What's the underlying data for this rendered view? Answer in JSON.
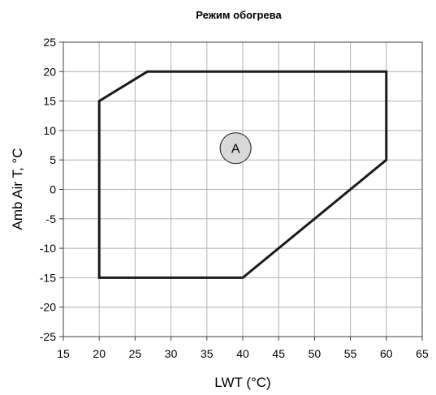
{
  "chart_data": {
    "type": "area",
    "title": "Режим обогрева",
    "xlabel": "LWT (°C)",
    "ylabel": "Amb Air T, °C",
    "xlim": [
      15,
      65
    ],
    "ylim": [
      -25,
      25
    ],
    "xticks": [
      15,
      20,
      25,
      30,
      35,
      40,
      45,
      50,
      55,
      60,
      65
    ],
    "yticks": [
      -25,
      -20,
      -15,
      -10,
      -5,
      0,
      5,
      10,
      15,
      20,
      25
    ],
    "grid": true,
    "series": [
      {
        "points": [
          {
            "x": 20,
            "y": 15
          },
          {
            "x": 26.7,
            "y": 20
          },
          {
            "x": 60,
            "y": 20
          },
          {
            "x": 60,
            "y": 5
          },
          {
            "x": 40,
            "y": -15
          },
          {
            "x": 20,
            "y": -15
          }
        ],
        "color": "#1a1a1a"
      }
    ],
    "annotations": [
      {
        "text": "A",
        "x": 39,
        "y": 7,
        "fill": "#d9d9d9"
      }
    ]
  }
}
